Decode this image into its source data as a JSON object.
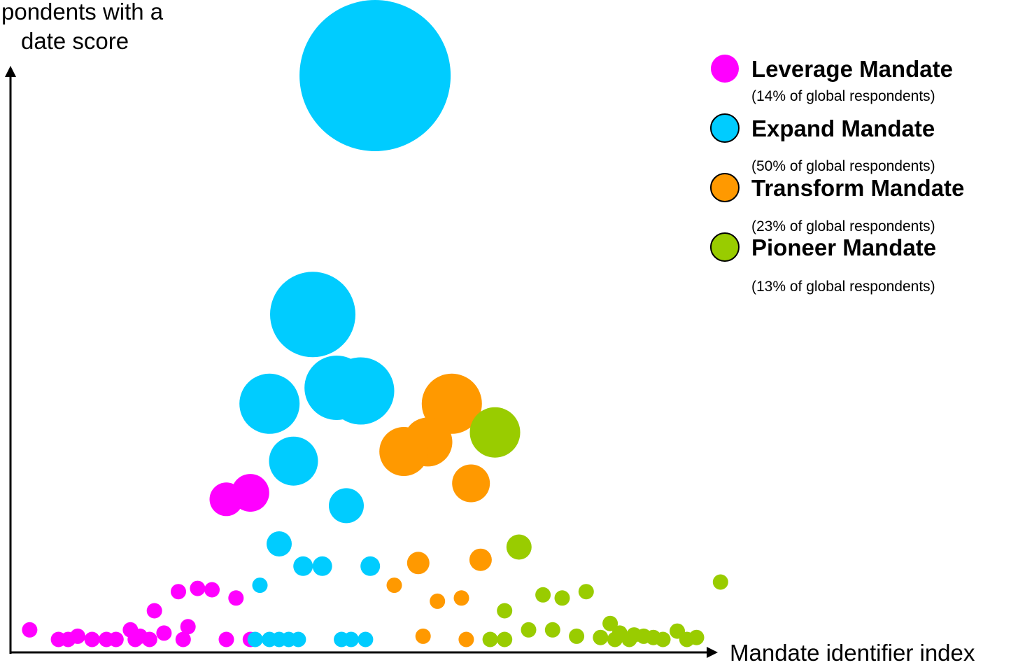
{
  "chart_data": {
    "type": "scatter",
    "ylabel_lines": [
      "pondents with a",
      "date score"
    ],
    "xlabel": "Mandate identifier index",
    "xlim": [
      0,
      101
    ],
    "ylim": [
      0,
      100
    ],
    "series": [
      {
        "name": "Leverage Mandate",
        "note": "(14% of global respondents)",
        "color": "#ff00ff",
        "points": [
          {
            "x": 2,
            "y": 2,
            "r": 11
          },
          {
            "x": 5,
            "y": 0.5,
            "r": 11
          },
          {
            "x": 6,
            "y": 0.5,
            "r": 11
          },
          {
            "x": 7,
            "y": 1,
            "r": 11
          },
          {
            "x": 8.5,
            "y": 0.5,
            "r": 11
          },
          {
            "x": 10,
            "y": 0.5,
            "r": 11
          },
          {
            "x": 11,
            "y": 0.5,
            "r": 11
          },
          {
            "x": 12.5,
            "y": 2,
            "r": 11
          },
          {
            "x": 13,
            "y": 0.5,
            "r": 11
          },
          {
            "x": 13.5,
            "y": 1,
            "r": 11
          },
          {
            "x": 14.5,
            "y": 0.5,
            "r": 11
          },
          {
            "x": 15,
            "y": 5,
            "r": 11
          },
          {
            "x": 16,
            "y": 1.5,
            "r": 11
          },
          {
            "x": 17.5,
            "y": 8,
            "r": 11
          },
          {
            "x": 18.5,
            "y": 2.5,
            "r": 11
          },
          {
            "x": 18,
            "y": 0.5,
            "r": 11
          },
          {
            "x": 19.5,
            "y": 8.5,
            "r": 11
          },
          {
            "x": 21,
            "y": 8.3,
            "r": 11
          },
          {
            "x": 22.5,
            "y": 0.5,
            "r": 11
          },
          {
            "x": 23.5,
            "y": 7,
            "r": 11
          },
          {
            "x": 25,
            "y": 0.5,
            "r": 11
          },
          {
            "x": 22.5,
            "y": 22.5,
            "r": 24
          },
          {
            "x": 25,
            "y": 23.5,
            "r": 27
          }
        ]
      },
      {
        "name": "Expand Mandate",
        "note": "(50% of global respondents)",
        "color": "#00ccff",
        "points": [
          {
            "x": 38,
            "y": 97,
            "r": 108
          },
          {
            "x": 31.5,
            "y": 51.5,
            "r": 61
          },
          {
            "x": 27,
            "y": 37.5,
            "r": 43
          },
          {
            "x": 34,
            "y": 40,
            "r": 46
          },
          {
            "x": 36.5,
            "y": 39.5,
            "r": 48
          },
          {
            "x": 29.5,
            "y": 28.5,
            "r": 35
          },
          {
            "x": 35,
            "y": 21.5,
            "r": 25
          },
          {
            "x": 28,
            "y": 15.5,
            "r": 18
          },
          {
            "x": 30.5,
            "y": 12,
            "r": 14
          },
          {
            "x": 32.5,
            "y": 12,
            "r": 14
          },
          {
            "x": 37.5,
            "y": 12,
            "r": 14
          },
          {
            "x": 26,
            "y": 9,
            "r": 11
          },
          {
            "x": 25.5,
            "y": 0.5,
            "r": 11
          },
          {
            "x": 27,
            "y": 0.5,
            "r": 11
          },
          {
            "x": 28,
            "y": 0.5,
            "r": 11
          },
          {
            "x": 29,
            "y": 0.5,
            "r": 11
          },
          {
            "x": 30,
            "y": 0.5,
            "r": 11
          },
          {
            "x": 34.5,
            "y": 0.5,
            "r": 11
          },
          {
            "x": 35.5,
            "y": 0.5,
            "r": 11
          },
          {
            "x": 37,
            "y": 0.5,
            "r": 11
          }
        ]
      },
      {
        "name": "Transform Mandate",
        "note": "(23% of global respondents)",
        "color": "#ff9900",
        "points": [
          {
            "x": 46,
            "y": 37.5,
            "r": 43
          },
          {
            "x": 43.5,
            "y": 31.5,
            "r": 35
          },
          {
            "x": 41,
            "y": 30,
            "r": 35
          },
          {
            "x": 48,
            "y": 25,
            "r": 27
          },
          {
            "x": 42.5,
            "y": 12.5,
            "r": 16
          },
          {
            "x": 49,
            "y": 13,
            "r": 16
          },
          {
            "x": 40,
            "y": 9,
            "r": 11
          },
          {
            "x": 44.5,
            "y": 6.5,
            "r": 11
          },
          {
            "x": 47,
            "y": 7,
            "r": 11
          },
          {
            "x": 43,
            "y": 1,
            "r": 11
          },
          {
            "x": 47.5,
            "y": 0.5,
            "r": 11
          }
        ]
      },
      {
        "name": "Pioneer Mandate",
        "note": "(13% of global respondents)",
        "color": "#99cc00",
        "points": [
          {
            "x": 50.5,
            "y": 33,
            "r": 36
          },
          {
            "x": 53,
            "y": 15,
            "r": 18
          },
          {
            "x": 51.5,
            "y": 5,
            "r": 11
          },
          {
            "x": 50,
            "y": 0.5,
            "r": 11
          },
          {
            "x": 51.5,
            "y": 0.5,
            "r": 11
          },
          {
            "x": 54,
            "y": 2,
            "r": 11
          },
          {
            "x": 55.5,
            "y": 7.5,
            "r": 11
          },
          {
            "x": 56.5,
            "y": 2,
            "r": 11
          },
          {
            "x": 57.5,
            "y": 7,
            "r": 11
          },
          {
            "x": 59,
            "y": 1,
            "r": 11
          },
          {
            "x": 60,
            "y": 8,
            "r": 11
          },
          {
            "x": 61.5,
            "y": 0.8,
            "r": 11
          },
          {
            "x": 62.5,
            "y": 3,
            "r": 11
          },
          {
            "x": 63,
            "y": 0.5,
            "r": 11
          },
          {
            "x": 63.5,
            "y": 1.5,
            "r": 11
          },
          {
            "x": 64.5,
            "y": 0.5,
            "r": 11
          },
          {
            "x": 65,
            "y": 1.2,
            "r": 11
          },
          {
            "x": 66,
            "y": 1,
            "r": 11
          },
          {
            "x": 67,
            "y": 0.8,
            "r": 11
          },
          {
            "x": 68,
            "y": 0.5,
            "r": 11
          },
          {
            "x": 69.5,
            "y": 1.8,
            "r": 11
          },
          {
            "x": 70.5,
            "y": 0.5,
            "r": 11
          },
          {
            "x": 71.5,
            "y": 0.8,
            "r": 11
          },
          {
            "x": 74,
            "y": 9.5,
            "r": 11
          }
        ]
      }
    ],
    "legend_position": "top-right",
    "grid": false
  }
}
